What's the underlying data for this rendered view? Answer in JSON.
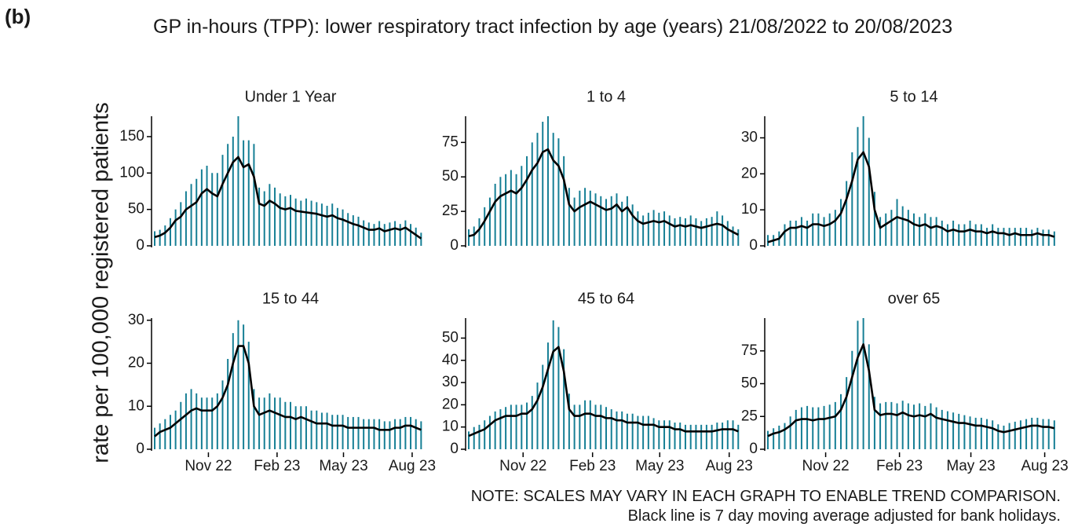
{
  "panel_label": "(b)",
  "title": "GP in-hours (TPP): lower respiratory tract infection by age (years) 21/08/2022 to 20/08/2023",
  "y_label": "rate per 100,000 registered patients",
  "notes": [
    "NOTE: SCALES MAY VARY IN EACH GRAPH TO ENABLE TREND COMPARISON.",
    "Black line is 7 day moving average adjusted for bank holidays."
  ],
  "chart_data": [
    {
      "type": "line",
      "title": "Under 1 Year",
      "xlim": [
        0,
        364
      ],
      "ylim": [
        0,
        178
      ],
      "yticks": [
        0,
        50,
        100,
        150
      ],
      "x": [
        0,
        7,
        14,
        21,
        28,
        35,
        42,
        49,
        56,
        63,
        70,
        77,
        84,
        91,
        98,
        105,
        112,
        119,
        126,
        133,
        140,
        147,
        154,
        161,
        168,
        175,
        182,
        189,
        196,
        203,
        210,
        217,
        224,
        231,
        238,
        245,
        252,
        259,
        266,
        273,
        280,
        287,
        294,
        301,
        308,
        315,
        322,
        329,
        336,
        343,
        350,
        357
      ],
      "series": [
        {
          "mark": "spike",
          "color": "#167f95",
          "values": [
            20,
            22,
            28,
            38,
            50,
            60,
            75,
            85,
            92,
            105,
            110,
            100,
            100,
            125,
            140,
            150,
            178,
            145,
            145,
            140,
            80,
            75,
            85,
            80,
            72,
            68,
            70,
            65,
            62,
            65,
            62,
            60,
            58,
            55,
            58,
            52,
            50,
            45,
            42,
            40,
            35,
            32,
            30,
            34,
            30,
            32,
            34,
            30,
            35,
            30,
            25,
            18
          ]
        },
        {
          "mark": "line",
          "color": "#000000",
          "values": [
            12,
            14,
            18,
            25,
            35,
            40,
            50,
            55,
            60,
            72,
            78,
            72,
            68,
            85,
            100,
            115,
            122,
            108,
            112,
            95,
            58,
            55,
            62,
            58,
            52,
            50,
            52,
            48,
            47,
            46,
            45,
            44,
            42,
            40,
            42,
            38,
            36,
            33,
            30,
            28,
            25,
            22,
            22,
            24,
            20,
            22,
            24,
            22,
            25,
            20,
            15,
            10
          ]
        }
      ]
    },
    {
      "type": "line",
      "title": "1 to 4",
      "xlim": [
        0,
        364
      ],
      "ylim": [
        0,
        94
      ],
      "yticks": [
        0,
        25,
        50,
        75
      ],
      "x": [
        0,
        7,
        14,
        21,
        28,
        35,
        42,
        49,
        56,
        63,
        70,
        77,
        84,
        91,
        98,
        105,
        112,
        119,
        126,
        133,
        140,
        147,
        154,
        161,
        168,
        175,
        182,
        189,
        196,
        203,
        210,
        217,
        224,
        231,
        238,
        245,
        252,
        259,
        266,
        273,
        280,
        287,
        294,
        301,
        308,
        315,
        322,
        329,
        336,
        343,
        350,
        357
      ],
      "series": [
        {
          "mark": "spike",
          "color": "#167f95",
          "values": [
            12,
            14,
            20,
            28,
            35,
            45,
            50,
            52,
            55,
            52,
            58,
            65,
            75,
            82,
            90,
            94,
            82,
            78,
            65,
            42,
            35,
            40,
            42,
            40,
            38,
            36,
            34,
            36,
            38,
            32,
            36,
            30,
            25,
            22,
            24,
            26,
            24,
            25,
            22,
            20,
            21,
            20,
            22,
            20,
            18,
            20,
            21,
            25,
            22,
            18,
            14,
            12
          ]
        },
        {
          "mark": "line",
          "color": "#000000",
          "values": [
            7,
            8,
            12,
            18,
            25,
            32,
            36,
            38,
            40,
            38,
            42,
            48,
            55,
            60,
            68,
            70,
            62,
            58,
            48,
            30,
            25,
            28,
            30,
            32,
            30,
            28,
            26,
            27,
            30,
            25,
            28,
            22,
            18,
            16,
            17,
            18,
            17,
            18,
            16,
            14,
            15,
            14,
            15,
            14,
            13,
            14,
            15,
            16,
            15,
            12,
            10,
            8
          ]
        }
      ]
    },
    {
      "type": "line",
      "title": "5 to 14",
      "xlim": [
        0,
        364
      ],
      "ylim": [
        0,
        36
      ],
      "yticks": [
        0,
        10,
        20,
        30
      ],
      "x": [
        0,
        7,
        14,
        21,
        28,
        35,
        42,
        49,
        56,
        63,
        70,
        77,
        84,
        91,
        98,
        105,
        112,
        119,
        126,
        133,
        140,
        147,
        154,
        161,
        168,
        175,
        182,
        189,
        196,
        203,
        210,
        217,
        224,
        231,
        238,
        245,
        252,
        259,
        266,
        273,
        280,
        287,
        294,
        301,
        308,
        315,
        322,
        329,
        336,
        343,
        350,
        357
      ],
      "series": [
        {
          "mark": "spike",
          "color": "#167f95",
          "values": [
            3,
            3,
            4,
            6,
            7,
            7,
            8,
            7,
            9,
            9,
            8,
            9,
            10,
            13,
            18,
            26,
            33,
            36,
            30,
            15,
            8,
            9,
            10,
            13,
            11,
            10,
            9,
            8,
            9,
            8,
            8,
            7,
            6,
            7,
            6,
            6,
            7,
            6,
            6,
            5,
            6,
            5,
            5,
            5,
            5,
            5,
            5,
            4.5,
            5,
            4.5,
            4.5,
            4
          ]
        },
        {
          "mark": "line",
          "color": "#000000",
          "values": [
            1,
            1.5,
            2,
            4,
            5,
            5,
            5.5,
            5,
            6,
            6,
            5.5,
            6,
            7,
            9,
            13,
            18,
            24,
            26,
            22,
            10,
            5,
            6,
            7,
            8,
            7.5,
            7,
            6,
            5.5,
            6,
            5,
            5.5,
            5,
            4,
            4.5,
            4,
            4,
            4.5,
            4,
            4,
            3.5,
            4,
            3.5,
            3.5,
            3,
            3.5,
            3,
            3,
            3,
            3.5,
            3,
            3,
            2.5
          ]
        }
      ]
    },
    {
      "type": "line",
      "title": "15 to 44",
      "xlim": [
        0,
        364
      ],
      "ylim": [
        0,
        30.5
      ],
      "yticks": [
        0,
        10,
        20,
        30
      ],
      "xticks": [
        {
          "value": 72,
          "label": "Nov 22"
        },
        {
          "value": 164,
          "label": "Feb 23"
        },
        {
          "value": 253,
          "label": "May 23"
        },
        {
          "value": 345,
          "label": "Aug 23"
        }
      ],
      "x": [
        0,
        7,
        14,
        21,
        28,
        35,
        42,
        49,
        56,
        63,
        70,
        77,
        84,
        91,
        98,
        105,
        112,
        119,
        126,
        133,
        140,
        147,
        154,
        161,
        168,
        175,
        182,
        189,
        196,
        203,
        210,
        217,
        224,
        231,
        238,
        245,
        252,
        259,
        266,
        273,
        280,
        287,
        294,
        301,
        308,
        315,
        322,
        329,
        336,
        343,
        350,
        357
      ],
      "series": [
        {
          "mark": "spike",
          "color": "#167f95",
          "values": [
            5,
            6,
            7,
            8,
            9,
            11,
            13,
            14,
            13,
            12,
            12,
            12,
            13,
            16,
            21,
            27,
            30,
            29,
            25,
            14,
            12,
            12,
            13,
            12,
            12,
            11,
            11,
            10,
            10,
            10,
            9,
            9,
            8.5,
            8.5,
            8,
            8,
            8,
            7.5,
            7.5,
            7.5,
            7,
            7,
            7,
            7,
            6.5,
            6.5,
            7,
            7,
            7.5,
            7.5,
            7,
            6.5
          ]
        },
        {
          "mark": "line",
          "color": "#000000",
          "values": [
            3,
            4,
            4.5,
            5,
            6,
            7,
            8,
            9,
            9.5,
            9,
            9,
            9,
            10,
            12,
            15,
            20,
            24,
            24,
            20,
            10,
            8,
            8.5,
            9,
            8.5,
            8,
            7.5,
            7.5,
            7,
            7.5,
            7,
            6.5,
            6,
            6,
            6,
            5.5,
            5.5,
            5.5,
            5,
            5,
            5,
            5,
            5,
            5,
            4.5,
            4.5,
            4.5,
            5,
            5,
            5.5,
            5.5,
            5,
            4.5
          ]
        }
      ]
    },
    {
      "type": "line",
      "title": "45 to 64",
      "xlim": [
        0,
        364
      ],
      "ylim": [
        0,
        59
      ],
      "yticks": [
        0,
        10,
        20,
        30,
        40,
        50
      ],
      "xticks": [
        {
          "value": 72,
          "label": "Nov 22"
        },
        {
          "value": 164,
          "label": "Feb 23"
        },
        {
          "value": 253,
          "label": "May 23"
        },
        {
          "value": 345,
          "label": "Aug 23"
        }
      ],
      "x": [
        0,
        7,
        14,
        21,
        28,
        35,
        42,
        49,
        56,
        63,
        70,
        77,
        84,
        91,
        98,
        105,
        112,
        119,
        126,
        133,
        140,
        147,
        154,
        161,
        168,
        175,
        182,
        189,
        196,
        203,
        210,
        217,
        224,
        231,
        238,
        245,
        252,
        259,
        266,
        273,
        280,
        287,
        294,
        301,
        308,
        315,
        322,
        329,
        336,
        343,
        350,
        357
      ],
      "series": [
        {
          "mark": "spike",
          "color": "#167f95",
          "values": [
            8,
            10,
            11,
            13,
            15,
            17,
            18,
            19,
            20,
            20,
            20,
            21,
            24,
            30,
            38,
            48,
            58,
            55,
            45,
            25,
            20,
            20,
            22,
            22,
            20,
            20,
            19,
            18,
            17,
            17,
            16,
            16,
            15,
            15,
            15,
            14,
            13,
            13,
            13,
            12,
            12,
            11,
            11,
            11,
            11,
            11,
            11,
            12,
            12,
            13,
            13,
            11
          ]
        },
        {
          "mark": "line",
          "color": "#000000",
          "values": [
            6,
            7,
            8,
            9,
            11,
            13,
            14,
            15,
            15,
            15,
            16,
            16,
            18,
            22,
            28,
            36,
            44,
            46,
            35,
            18,
            15,
            15,
            16,
            16,
            15,
            15,
            14,
            14,
            13,
            13,
            12,
            12,
            12,
            11,
            11,
            11,
            10,
            10,
            10,
            9,
            9,
            8,
            8,
            8,
            8,
            8,
            8,
            8.5,
            9,
            9,
            9,
            8
          ]
        }
      ]
    },
    {
      "type": "line",
      "title": "over 65",
      "xlim": [
        0,
        364
      ],
      "ylim": [
        0,
        100
      ],
      "yticks": [
        0,
        25,
        50,
        75
      ],
      "xticks": [
        {
          "value": 72,
          "label": "Nov 22"
        },
        {
          "value": 164,
          "label": "Feb 23"
        },
        {
          "value": 253,
          "label": "May 23"
        },
        {
          "value": 345,
          "label": "Aug 23"
        }
      ],
      "x": [
        0,
        7,
        14,
        21,
        28,
        35,
        42,
        49,
        56,
        63,
        70,
        77,
        84,
        91,
        98,
        105,
        112,
        119,
        126,
        133,
        140,
        147,
        154,
        161,
        168,
        175,
        182,
        189,
        196,
        203,
        210,
        217,
        224,
        231,
        238,
        245,
        252,
        259,
        266,
        273,
        280,
        287,
        294,
        301,
        308,
        315,
        322,
        329,
        336,
        343,
        350,
        357
      ],
      "series": [
        {
          "mark": "spike",
          "color": "#167f95",
          "values": [
            14,
            16,
            18,
            20,
            25,
            30,
            32,
            33,
            32,
            32,
            33,
            34,
            36,
            42,
            55,
            75,
            98,
            100,
            80,
            40,
            35,
            36,
            36,
            35,
            37,
            35,
            34,
            35,
            33,
            35,
            32,
            30,
            29,
            28,
            27,
            26,
            25,
            24,
            24,
            23,
            22,
            19,
            18,
            20,
            21,
            22,
            23,
            24,
            24,
            23,
            23,
            22
          ]
        },
        {
          "mark": "line",
          "color": "#000000",
          "values": [
            10,
            12,
            13,
            15,
            18,
            22,
            23,
            23,
            22,
            23,
            23,
            24,
            25,
            30,
            40,
            55,
            70,
            80,
            60,
            30,
            26,
            27,
            27,
            26,
            28,
            26,
            25,
            26,
            25,
            27,
            24,
            23,
            22,
            21,
            20,
            20,
            19,
            18,
            18,
            17,
            16,
            14,
            13,
            14,
            15,
            16,
            17,
            18,
            18,
            17,
            17,
            16
          ]
        }
      ]
    }
  ]
}
